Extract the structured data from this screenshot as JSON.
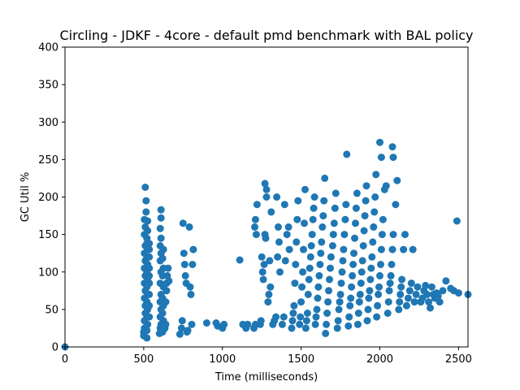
{
  "chart_data": {
    "type": "scatter",
    "title": "Circling - JDKF - 4core -  default pmd benchmark with BAL policy",
    "xlabel": "Time (milliseconds)",
    "ylabel": "GC Util %",
    "xlim": [
      0,
      2560
    ],
    "ylim": [
      0,
      400
    ],
    "xticks": [
      "0",
      "500",
      "1000",
      "1500",
      "2000",
      "2500"
    ],
    "yticks": [
      "0",
      "50",
      "100",
      "150",
      "200",
      "250",
      "300",
      "350",
      "400"
    ],
    "grid": false,
    "marker_color": "#1f77b4",
    "points": [
      [
        0,
        0
      ],
      [
        500,
        15
      ],
      [
        500,
        20
      ],
      [
        505,
        25
      ],
      [
        505,
        35
      ],
      [
        510,
        45
      ],
      [
        510,
        55
      ],
      [
        505,
        65
      ],
      [
        510,
        75
      ],
      [
        505,
        85
      ],
      [
        510,
        95
      ],
      [
        505,
        105
      ],
      [
        510,
        115
      ],
      [
        505,
        125
      ],
      [
        510,
        135
      ],
      [
        505,
        150
      ],
      [
        510,
        160
      ],
      [
        505,
        170
      ],
      [
        515,
        180
      ],
      [
        515,
        195
      ],
      [
        510,
        213
      ],
      [
        520,
        12
      ],
      [
        520,
        22
      ],
      [
        525,
        30
      ],
      [
        520,
        40
      ],
      [
        525,
        50
      ],
      [
        520,
        60
      ],
      [
        525,
        70
      ],
      [
        520,
        80
      ],
      [
        525,
        90
      ],
      [
        520,
        100
      ],
      [
        525,
        110
      ],
      [
        520,
        120
      ],
      [
        525,
        130
      ],
      [
        520,
        138
      ],
      [
        520,
        145
      ],
      [
        525,
        155
      ],
      [
        525,
        168
      ],
      [
        535,
        40
      ],
      [
        535,
        55
      ],
      [
        535,
        70
      ],
      [
        535,
        85
      ],
      [
        535,
        95
      ],
      [
        535,
        105
      ],
      [
        535,
        120
      ],
      [
        535,
        130
      ],
      [
        535,
        138
      ],
      [
        600,
        18
      ],
      [
        605,
        25
      ],
      [
        610,
        30
      ],
      [
        605,
        40
      ],
      [
        610,
        50
      ],
      [
        605,
        60
      ],
      [
        610,
        70
      ],
      [
        605,
        85
      ],
      [
        610,
        100
      ],
      [
        605,
        115
      ],
      [
        610,
        125
      ],
      [
        605,
        135
      ],
      [
        610,
        145
      ],
      [
        605,
        158
      ],
      [
        610,
        172
      ],
      [
        610,
        183
      ],
      [
        620,
        20
      ],
      [
        625,
        35
      ],
      [
        620,
        45
      ],
      [
        625,
        55
      ],
      [
        620,
        65
      ],
      [
        625,
        80
      ],
      [
        620,
        95
      ],
      [
        625,
        105
      ],
      [
        620,
        118
      ],
      [
        625,
        130
      ],
      [
        635,
        25
      ],
      [
        640,
        30
      ],
      [
        640,
        60
      ],
      [
        645,
        75
      ],
      [
        645,
        85
      ],
      [
        650,
        95
      ],
      [
        655,
        105
      ],
      [
        660,
        88
      ],
      [
        730,
        17
      ],
      [
        740,
        25
      ],
      [
        745,
        35
      ],
      [
        750,
        165
      ],
      [
        755,
        125
      ],
      [
        760,
        110
      ],
      [
        765,
        95
      ],
      [
        770,
        85
      ],
      [
        775,
        20
      ],
      [
        780,
        22
      ],
      [
        790,
        160
      ],
      [
        795,
        80
      ],
      [
        800,
        70
      ],
      [
        805,
        30
      ],
      [
        810,
        110
      ],
      [
        815,
        130
      ],
      [
        900,
        32
      ],
      [
        960,
        32
      ],
      [
        970,
        28
      ],
      [
        1000,
        25
      ],
      [
        1010,
        30
      ],
      [
        1110,
        116
      ],
      [
        1130,
        30
      ],
      [
        1150,
        25
      ],
      [
        1160,
        30
      ],
      [
        1200,
        25
      ],
      [
        1210,
        30
      ],
      [
        1205,
        160
      ],
      [
        1210,
        170
      ],
      [
        1215,
        150
      ],
      [
        1220,
        190
      ],
      [
        1240,
        30
      ],
      [
        1245,
        35
      ],
      [
        1250,
        120
      ],
      [
        1255,
        100
      ],
      [
        1260,
        90
      ],
      [
        1265,
        110
      ],
      [
        1270,
        150
      ],
      [
        1275,
        145
      ],
      [
        1280,
        200
      ],
      [
        1270,
        218
      ],
      [
        1280,
        210
      ],
      [
        1290,
        60
      ],
      [
        1295,
        70
      ],
      [
        1300,
        115
      ],
      [
        1305,
        80
      ],
      [
        1310,
        180
      ],
      [
        1320,
        30
      ],
      [
        1330,
        35
      ],
      [
        1340,
        40
      ],
      [
        1345,
        200
      ],
      [
        1350,
        120
      ],
      [
        1355,
        160
      ],
      [
        1360,
        140
      ],
      [
        1365,
        100
      ],
      [
        1380,
        30
      ],
      [
        1390,
        40
      ],
      [
        1395,
        190
      ],
      [
        1400,
        115
      ],
      [
        1410,
        150
      ],
      [
        1420,
        160
      ],
      [
        1425,
        130
      ],
      [
        1440,
        25
      ],
      [
        1445,
        35
      ],
      [
        1450,
        45
      ],
      [
        1455,
        55
      ],
      [
        1460,
        85
      ],
      [
        1465,
        110
      ],
      [
        1470,
        140
      ],
      [
        1475,
        170
      ],
      [
        1480,
        195
      ],
      [
        1490,
        30
      ],
      [
        1495,
        40
      ],
      [
        1500,
        60
      ],
      [
        1505,
        80
      ],
      [
        1510,
        100
      ],
      [
        1515,
        130
      ],
      [
        1520,
        165
      ],
      [
        1525,
        210
      ],
      [
        1530,
        25
      ],
      [
        1535,
        35
      ],
      [
        1540,
        45
      ],
      [
        1545,
        70
      ],
      [
        1550,
        90
      ],
      [
        1555,
        105
      ],
      [
        1560,
        120
      ],
      [
        1565,
        135
      ],
      [
        1570,
        150
      ],
      [
        1575,
        170
      ],
      [
        1580,
        185
      ],
      [
        1585,
        200
      ],
      [
        1590,
        30
      ],
      [
        1595,
        40
      ],
      [
        1600,
        50
      ],
      [
        1605,
        65
      ],
      [
        1610,
        80
      ],
      [
        1615,
        95
      ],
      [
        1620,
        110
      ],
      [
        1625,
        125
      ],
      [
        1630,
        140
      ],
      [
        1635,
        160
      ],
      [
        1640,
        175
      ],
      [
        1645,
        195
      ],
      [
        1650,
        225
      ],
      [
        1655,
        18
      ],
      [
        1660,
        30
      ],
      [
        1665,
        45
      ],
      [
        1670,
        60
      ],
      [
        1675,
        75
      ],
      [
        1680,
        90
      ],
      [
        1685,
        105
      ],
      [
        1690,
        120
      ],
      [
        1700,
        135
      ],
      [
        1705,
        150
      ],
      [
        1710,
        165
      ],
      [
        1715,
        185
      ],
      [
        1720,
        205
      ],
      [
        1730,
        25
      ],
      [
        1735,
        35
      ],
      [
        1740,
        50
      ],
      [
        1745,
        60
      ],
      [
        1750,
        70
      ],
      [
        1755,
        85
      ],
      [
        1760,
        100
      ],
      [
        1765,
        115
      ],
      [
        1770,
        130
      ],
      [
        1775,
        150
      ],
      [
        1780,
        170
      ],
      [
        1785,
        190
      ],
      [
        1790,
        257
      ],
      [
        1800,
        28
      ],
      [
        1805,
        40
      ],
      [
        1810,
        55
      ],
      [
        1815,
        65
      ],
      [
        1820,
        80
      ],
      [
        1825,
        95
      ],
      [
        1830,
        110
      ],
      [
        1835,
        125
      ],
      [
        1840,
        145
      ],
      [
        1845,
        165
      ],
      [
        1850,
        185
      ],
      [
        1855,
        205
      ],
      [
        1860,
        30
      ],
      [
        1865,
        45
      ],
      [
        1870,
        60
      ],
      [
        1875,
        70
      ],
      [
        1880,
        85
      ],
      [
        1885,
        100
      ],
      [
        1890,
        115
      ],
      [
        1895,
        135
      ],
      [
        1900,
        155
      ],
      [
        1905,
        175
      ],
      [
        1910,
        195
      ],
      [
        1915,
        215
      ],
      [
        1920,
        35
      ],
      [
        1925,
        50
      ],
      [
        1930,
        65
      ],
      [
        1935,
        75
      ],
      [
        1940,
        90
      ],
      [
        1945,
        105
      ],
      [
        1950,
        120
      ],
      [
        1955,
        140
      ],
      [
        1960,
        160
      ],
      [
        1965,
        180
      ],
      [
        1970,
        200
      ],
      [
        1975,
        230
      ],
      [
        1980,
        40
      ],
      [
        1985,
        55
      ],
      [
        1990,
        70
      ],
      [
        1995,
        80
      ],
      [
        2000,
        95
      ],
      [
        2005,
        110
      ],
      [
        2010,
        130
      ],
      [
        2015,
        150
      ],
      [
        2020,
        170
      ],
      [
        2000,
        273
      ],
      [
        2010,
        253
      ],
      [
        2030,
        210
      ],
      [
        2040,
        215
      ],
      [
        2050,
        45
      ],
      [
        2055,
        60
      ],
      [
        2060,
        75
      ],
      [
        2065,
        85
      ],
      [
        2070,
        95
      ],
      [
        2075,
        110
      ],
      [
        2080,
        130
      ],
      [
        2085,
        150
      ],
      [
        2080,
        267
      ],
      [
        2085,
        253
      ],
      [
        2100,
        190
      ],
      [
        2110,
        222
      ],
      [
        2120,
        50
      ],
      [
        2125,
        60
      ],
      [
        2130,
        70
      ],
      [
        2135,
        80
      ],
      [
        2140,
        90
      ],
      [
        2150,
        130
      ],
      [
        2160,
        150
      ],
      [
        2170,
        55
      ],
      [
        2180,
        65
      ],
      [
        2190,
        75
      ],
      [
        2200,
        85
      ],
      [
        2210,
        130
      ],
      [
        2220,
        60
      ],
      [
        2230,
        70
      ],
      [
        2240,
        80
      ],
      [
        2260,
        60
      ],
      [
        2270,
        65
      ],
      [
        2280,
        75
      ],
      [
        2290,
        82
      ],
      [
        2300,
        70
      ],
      [
        2310,
        60
      ],
      [
        2320,
        52
      ],
      [
        2330,
        80
      ],
      [
        2340,
        70
      ],
      [
        2350,
        65
      ],
      [
        2360,
        72
      ],
      [
        2370,
        68
      ],
      [
        2380,
        60
      ],
      [
        2400,
        75
      ],
      [
        2420,
        88
      ],
      [
        2450,
        78
      ],
      [
        2470,
        75
      ],
      [
        2490,
        168
      ],
      [
        2500,
        72
      ],
      [
        2560,
        70
      ]
    ]
  }
}
